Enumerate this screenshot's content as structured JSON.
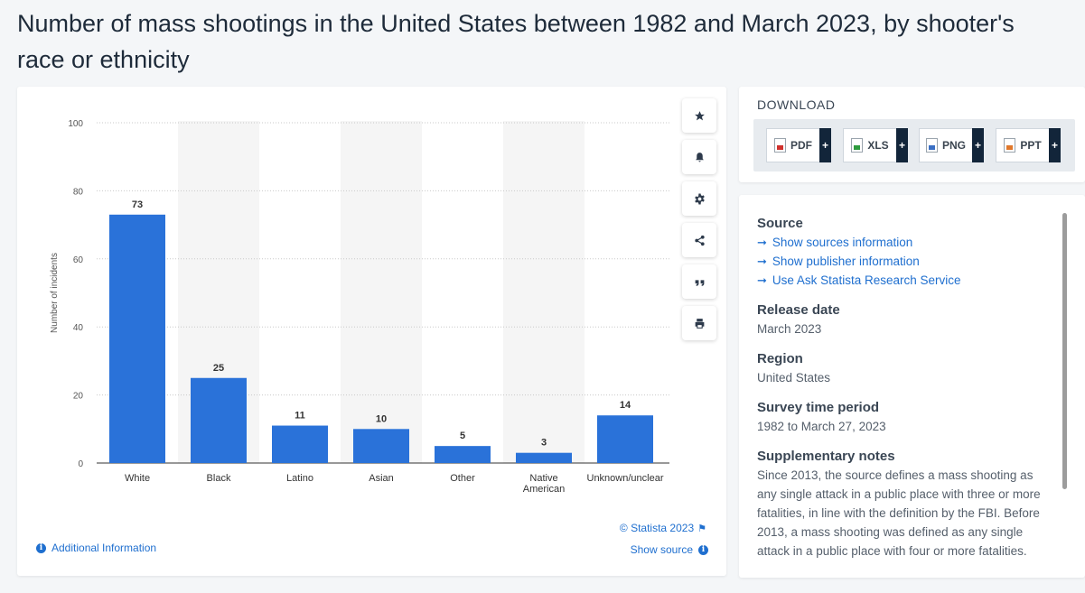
{
  "title": "Number of mass shootings in the United States between 1982 and March 2023, by shooter's race or ethnicity",
  "chart_data": {
    "type": "bar",
    "categories": [
      "White",
      "Black",
      "Latino",
      "Asian",
      "Other",
      "Native American",
      "Unknown/unclear"
    ],
    "category_lines": [
      [
        "White"
      ],
      [
        "Black"
      ],
      [
        "Latino"
      ],
      [
        "Asian"
      ],
      [
        "Other"
      ],
      [
        "Native",
        "American"
      ],
      [
        "Unknown/unclear"
      ]
    ],
    "values": [
      73,
      25,
      11,
      10,
      5,
      3,
      14
    ],
    "ylabel": "Number of incidents",
    "xlabel": "",
    "ylim": [
      0,
      100
    ],
    "yticks": [
      0,
      20,
      40,
      60,
      80,
      100
    ],
    "bar_color": "#2a72d9",
    "grid": true
  },
  "toolbar": {
    "items": [
      {
        "name": "favorite",
        "icon": "star-icon"
      },
      {
        "name": "notification",
        "icon": "bell-icon"
      },
      {
        "name": "settings",
        "icon": "gear-icon"
      },
      {
        "name": "share",
        "icon": "share-icon"
      },
      {
        "name": "cite",
        "icon": "quote-icon"
      },
      {
        "name": "print",
        "icon": "printer-icon"
      }
    ]
  },
  "footer": {
    "copyright": "© Statista 2023",
    "show_source": "Show source",
    "additional_info": "Additional Information"
  },
  "download": {
    "title": "DOWNLOAD",
    "buttons": [
      {
        "label": "PDF",
        "icon_color": "#d0312d"
      },
      {
        "label": "XLS",
        "icon_color": "#2e9b3e"
      },
      {
        "label": "PNG",
        "icon_color": "#3a6fc4"
      },
      {
        "label": "PPT",
        "icon_color": "#e0782b"
      }
    ],
    "plus": "+"
  },
  "info": {
    "source_title": "Source",
    "links": [
      "Show sources information",
      "Show publisher information",
      "Use Ask Statista Research Service"
    ],
    "release_title": "Release date",
    "release_value": "March 2023",
    "region_title": "Region",
    "region_value": "United States",
    "period_title": "Survey time period",
    "period_value": "1982 to March 27, 2023",
    "notes_title": "Supplementary notes",
    "notes_value": "Since 2013, the source defines a mass shooting as any single attack in a public place with three or more fatalities, in line with the definition by the FBI. Before 2013, a mass shooting was defined as any single attack in a public place with four or more fatalities."
  },
  "colors": {
    "accent": "#1f6fcf",
    "dark": "#12253a"
  }
}
